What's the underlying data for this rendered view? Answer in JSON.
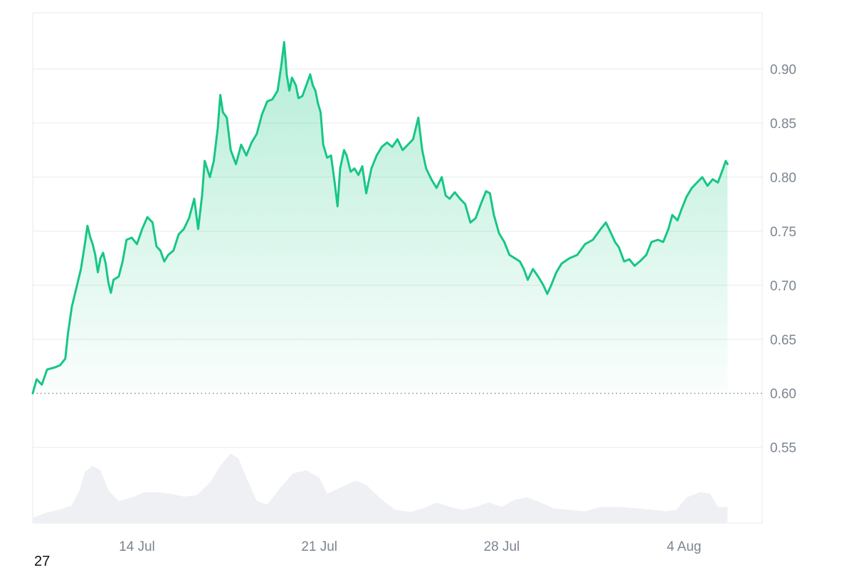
{
  "chart_data": {
    "type": "area",
    "title": "",
    "xlabel": "",
    "ylabel": "",
    "ylim": [
      0.48,
      0.952
    ],
    "baseline": 0.6,
    "grid": true,
    "legend": "none",
    "x_axis": {
      "start": "2024-07-10",
      "end": "2024-08-07",
      "ticks": [
        {
          "date": "2024-07-14",
          "label": "14 Jul"
        },
        {
          "date": "2024-07-21",
          "label": "21 Jul"
        },
        {
          "date": "2024-07-28",
          "label": "28 Jul"
        },
        {
          "date": "2024-08-04",
          "label": "4 Aug"
        }
      ]
    },
    "y_axis": {
      "ticks": [
        0.55,
        0.6,
        0.65,
        0.7,
        0.75,
        0.8,
        0.85,
        0.9
      ],
      "tick_labels": [
        "0.55",
        "0.60",
        "0.65",
        "0.70",
        "0.75",
        "0.80",
        "0.85",
        "0.90"
      ],
      "position": "right"
    },
    "series": [
      {
        "values": [
          [
            0.0,
            0.6
          ],
          [
            0.15,
            0.613
          ],
          [
            0.35,
            0.608
          ],
          [
            0.55,
            0.622
          ],
          [
            0.85,
            0.624
          ],
          [
            1.05,
            0.626
          ],
          [
            1.25,
            0.632
          ],
          [
            1.35,
            0.655
          ],
          [
            1.5,
            0.68
          ],
          [
            1.7,
            0.7
          ],
          [
            1.85,
            0.715
          ],
          [
            2.0,
            0.738
          ],
          [
            2.1,
            0.755
          ],
          [
            2.2,
            0.745
          ],
          [
            2.3,
            0.738
          ],
          [
            2.4,
            0.728
          ],
          [
            2.5,
            0.712
          ],
          [
            2.6,
            0.725
          ],
          [
            2.7,
            0.73
          ],
          [
            2.8,
            0.72
          ],
          [
            2.9,
            0.703
          ],
          [
            3.0,
            0.693
          ],
          [
            3.1,
            0.705
          ],
          [
            3.3,
            0.708
          ],
          [
            3.45,
            0.722
          ],
          [
            3.6,
            0.742
          ],
          [
            3.8,
            0.744
          ],
          [
            4.0,
            0.738
          ],
          [
            4.2,
            0.752
          ],
          [
            4.4,
            0.763
          ],
          [
            4.6,
            0.758
          ],
          [
            4.75,
            0.736
          ],
          [
            4.9,
            0.732
          ],
          [
            5.05,
            0.722
          ],
          [
            5.2,
            0.728
          ],
          [
            5.4,
            0.732
          ],
          [
            5.6,
            0.747
          ],
          [
            5.8,
            0.752
          ],
          [
            6.0,
            0.762
          ],
          [
            6.2,
            0.78
          ],
          [
            6.35,
            0.752
          ],
          [
            6.5,
            0.783
          ],
          [
            6.6,
            0.815
          ],
          [
            6.8,
            0.8
          ],
          [
            6.95,
            0.815
          ],
          [
            7.1,
            0.845
          ],
          [
            7.2,
            0.876
          ],
          [
            7.3,
            0.86
          ],
          [
            7.45,
            0.855
          ],
          [
            7.6,
            0.825
          ],
          [
            7.8,
            0.812
          ],
          [
            8.0,
            0.83
          ],
          [
            8.2,
            0.82
          ],
          [
            8.4,
            0.832
          ],
          [
            8.6,
            0.84
          ],
          [
            8.8,
            0.858
          ],
          [
            9.0,
            0.87
          ],
          [
            9.2,
            0.872
          ],
          [
            9.4,
            0.88
          ],
          [
            9.55,
            0.905
          ],
          [
            9.65,
            0.925
          ],
          [
            9.75,
            0.895
          ],
          [
            9.85,
            0.88
          ],
          [
            9.95,
            0.892
          ],
          [
            10.1,
            0.885
          ],
          [
            10.2,
            0.873
          ],
          [
            10.35,
            0.875
          ],
          [
            10.5,
            0.885
          ],
          [
            10.65,
            0.895
          ],
          [
            10.75,
            0.885
          ],
          [
            10.85,
            0.88
          ],
          [
            10.95,
            0.868
          ],
          [
            11.05,
            0.86
          ],
          [
            11.15,
            0.83
          ],
          [
            11.3,
            0.818
          ],
          [
            11.45,
            0.82
          ],
          [
            11.6,
            0.793
          ],
          [
            11.7,
            0.773
          ],
          [
            11.8,
            0.808
          ],
          [
            11.95,
            0.825
          ],
          [
            12.05,
            0.82
          ],
          [
            12.2,
            0.805
          ],
          [
            12.35,
            0.808
          ],
          [
            12.5,
            0.802
          ],
          [
            12.65,
            0.81
          ],
          [
            12.8,
            0.785
          ],
          [
            13.0,
            0.808
          ],
          [
            13.2,
            0.82
          ],
          [
            13.4,
            0.828
          ],
          [
            13.6,
            0.832
          ],
          [
            13.8,
            0.828
          ],
          [
            14.0,
            0.835
          ],
          [
            14.2,
            0.825
          ],
          [
            14.4,
            0.83
          ],
          [
            14.6,
            0.835
          ],
          [
            14.8,
            0.855
          ],
          [
            14.95,
            0.825
          ],
          [
            15.1,
            0.808
          ],
          [
            15.3,
            0.798
          ],
          [
            15.5,
            0.79
          ],
          [
            15.7,
            0.8
          ],
          [
            15.85,
            0.783
          ],
          [
            16.0,
            0.78
          ],
          [
            16.2,
            0.786
          ],
          [
            16.4,
            0.78
          ],
          [
            16.6,
            0.775
          ],
          [
            16.8,
            0.758
          ],
          [
            17.0,
            0.762
          ],
          [
            17.2,
            0.775
          ],
          [
            17.4,
            0.787
          ],
          [
            17.55,
            0.785
          ],
          [
            17.7,
            0.765
          ],
          [
            17.9,
            0.748
          ],
          [
            18.1,
            0.74
          ],
          [
            18.3,
            0.728
          ],
          [
            18.5,
            0.725
          ],
          [
            18.7,
            0.722
          ],
          [
            18.85,
            0.715
          ],
          [
            19.0,
            0.705
          ],
          [
            19.2,
            0.715
          ],
          [
            19.4,
            0.708
          ],
          [
            19.6,
            0.7
          ],
          [
            19.75,
            0.692
          ],
          [
            19.9,
            0.7
          ],
          [
            20.1,
            0.712
          ],
          [
            20.3,
            0.72
          ],
          [
            20.6,
            0.725
          ],
          [
            20.9,
            0.728
          ],
          [
            21.2,
            0.738
          ],
          [
            21.5,
            0.742
          ],
          [
            21.8,
            0.752
          ],
          [
            22.0,
            0.758
          ],
          [
            22.2,
            0.748
          ],
          [
            22.35,
            0.74
          ],
          [
            22.5,
            0.735
          ],
          [
            22.7,
            0.722
          ],
          [
            22.9,
            0.724
          ],
          [
            23.1,
            0.718
          ],
          [
            23.3,
            0.722
          ],
          [
            23.55,
            0.728
          ],
          [
            23.75,
            0.74
          ],
          [
            24.0,
            0.742
          ],
          [
            24.2,
            0.74
          ],
          [
            24.4,
            0.752
          ],
          [
            24.55,
            0.765
          ],
          [
            24.75,
            0.76
          ],
          [
            24.9,
            0.77
          ],
          [
            25.1,
            0.782
          ],
          [
            25.3,
            0.79
          ],
          [
            25.5,
            0.795
          ],
          [
            25.7,
            0.8
          ],
          [
            25.9,
            0.792
          ],
          [
            26.1,
            0.798
          ],
          [
            26.3,
            0.795
          ],
          [
            26.5,
            0.808
          ],
          [
            26.6,
            0.815
          ],
          [
            26.67,
            0.812
          ]
        ]
      }
    ],
    "volume": {
      "values": [
        [
          0.0,
          0.07
        ],
        [
          0.5,
          0.14
        ],
        [
          1.0,
          0.18
        ],
        [
          1.5,
          0.24
        ],
        [
          1.8,
          0.45
        ],
        [
          2.0,
          0.7
        ],
        [
          2.3,
          0.78
        ],
        [
          2.6,
          0.72
        ],
        [
          2.9,
          0.45
        ],
        [
          3.3,
          0.3
        ],
        [
          3.8,
          0.35
        ],
        [
          4.3,
          0.42
        ],
        [
          4.8,
          0.42
        ],
        [
          5.3,
          0.4
        ],
        [
          5.8,
          0.36
        ],
        [
          6.3,
          0.38
        ],
        [
          6.8,
          0.55
        ],
        [
          7.2,
          0.78
        ],
        [
          7.6,
          0.95
        ],
        [
          7.9,
          0.88
        ],
        [
          8.2,
          0.62
        ],
        [
          8.6,
          0.3
        ],
        [
          9.0,
          0.25
        ],
        [
          9.5,
          0.48
        ],
        [
          10.0,
          0.68
        ],
        [
          10.5,
          0.72
        ],
        [
          11.0,
          0.62
        ],
        [
          11.3,
          0.4
        ],
        [
          11.8,
          0.48
        ],
        [
          12.4,
          0.58
        ],
        [
          12.8,
          0.52
        ],
        [
          13.3,
          0.35
        ],
        [
          13.9,
          0.18
        ],
        [
          14.5,
          0.15
        ],
        [
          15.0,
          0.2
        ],
        [
          15.5,
          0.28
        ],
        [
          16.0,
          0.22
        ],
        [
          16.5,
          0.18
        ],
        [
          17.0,
          0.22
        ],
        [
          17.5,
          0.28
        ],
        [
          18.0,
          0.22
        ],
        [
          18.5,
          0.32
        ],
        [
          19.0,
          0.35
        ],
        [
          19.5,
          0.28
        ],
        [
          20.0,
          0.2
        ],
        [
          20.6,
          0.18
        ],
        [
          21.2,
          0.16
        ],
        [
          21.8,
          0.22
        ],
        [
          22.5,
          0.22
        ],
        [
          23.2,
          0.2
        ],
        [
          23.8,
          0.18
        ],
        [
          24.3,
          0.16
        ],
        [
          24.7,
          0.18
        ],
        [
          25.1,
          0.35
        ],
        [
          25.6,
          0.42
        ],
        [
          26.0,
          0.4
        ],
        [
          26.3,
          0.22
        ],
        [
          26.67,
          0.22
        ]
      ]
    }
  },
  "footer": {
    "label": "27"
  },
  "colors": {
    "line": "#16c784",
    "area_top": "#16c784",
    "volume": "#eef0f4",
    "grid": "#eceef1",
    "baseline": "#7f8890",
    "frame": "#e6e8eb"
  }
}
